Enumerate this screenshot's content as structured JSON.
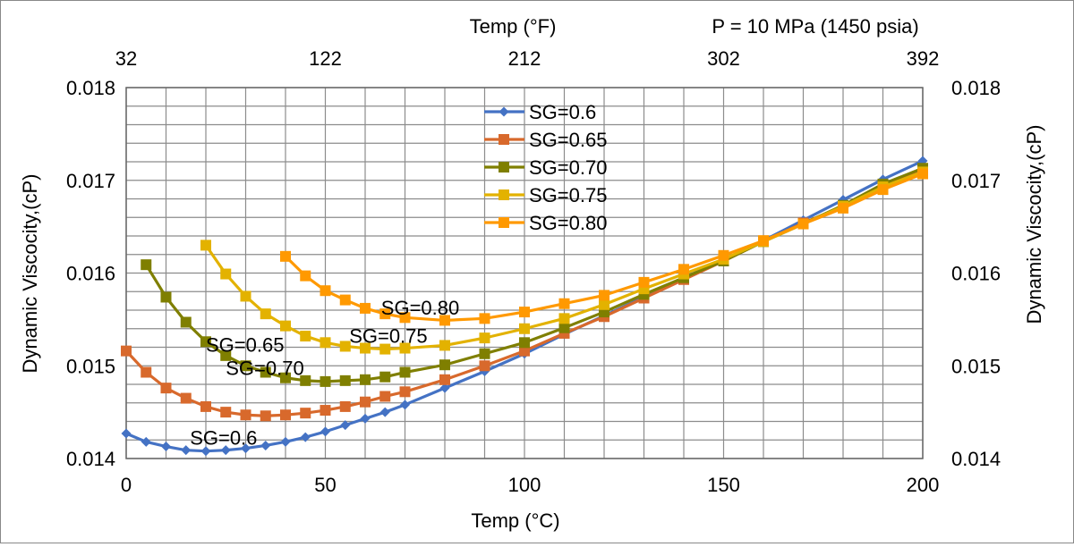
{
  "chart_data": {
    "type": "line",
    "top_title": "Temp (°F)",
    "condition_label": "P = 10 MPa (1450 psia)",
    "xlabel": "Temp (°C)",
    "ylabel": "Dynamic Viscocity,(cP)",
    "ylabel_right": "Dynamic Viscocity,(cP)",
    "xlim": [
      0,
      200
    ],
    "ylim": [
      0.014,
      0.018
    ],
    "x_ticks": [
      "0",
      "50",
      "100",
      "150",
      "200"
    ],
    "x_tick_values": [
      0,
      50,
      100,
      150,
      200
    ],
    "top_x_ticks": [
      "32",
      "122",
      "212",
      "302",
      "392"
    ],
    "y_ticks": [
      "0.014",
      "0.015",
      "0.016",
      "0.017",
      "0.018"
    ],
    "y_tick_values": [
      0.014,
      0.015,
      0.016,
      0.017,
      0.018
    ],
    "grid": true,
    "legend_position": "top-center",
    "series": [
      {
        "name": "SG=0.6",
        "color": "#4472C4",
        "marker": "diamond",
        "x": [
          0,
          5,
          10,
          15,
          20,
          25,
          30,
          35,
          40,
          45,
          50,
          55,
          60,
          65,
          70,
          80,
          90,
          100,
          110,
          120,
          130,
          140,
          150,
          160,
          170,
          180,
          190,
          200
        ],
        "y": [
          0.01427,
          0.01418,
          0.01413,
          0.01409,
          0.01408,
          0.01409,
          0.01411,
          0.01414,
          0.01418,
          0.01423,
          0.01429,
          0.01436,
          0.01443,
          0.0145,
          0.01458,
          0.01476,
          0.01494,
          0.01513,
          0.01534,
          0.01554,
          0.01574,
          0.01595,
          0.01614,
          0.01635,
          0.01657,
          0.01679,
          0.01701,
          0.01721
        ]
      },
      {
        "name": "SG=0.65",
        "color": "#D8692C",
        "marker": "square",
        "x": [
          0,
          5,
          10,
          15,
          20,
          25,
          30,
          35,
          40,
          45,
          50,
          55,
          60,
          65,
          70,
          80,
          90,
          100,
          110,
          120,
          130,
          140,
          150,
          160,
          170,
          180,
          190,
          200
        ],
        "y": [
          0.01516,
          0.01493,
          0.01476,
          0.01465,
          0.01456,
          0.0145,
          0.01447,
          0.01446,
          0.01447,
          0.01449,
          0.01452,
          0.01456,
          0.01461,
          0.01467,
          0.01472,
          0.01485,
          0.015,
          0.01516,
          0.01535,
          0.01553,
          0.01573,
          0.01593,
          0.01613,
          0.01634,
          0.01654,
          0.01672,
          0.01695,
          0.0171
        ]
      },
      {
        "name": "SG=0.70",
        "color": "#7F7F00",
        "marker": "square",
        "x": [
          5,
          10,
          15,
          20,
          25,
          30,
          35,
          40,
          45,
          50,
          55,
          60,
          65,
          70,
          80,
          90,
          100,
          110,
          120,
          130,
          140,
          150,
          160,
          170,
          180,
          190,
          200
        ],
        "y": [
          0.01609,
          0.01574,
          0.01547,
          0.01526,
          0.01511,
          0.015,
          0.01493,
          0.01487,
          0.01484,
          0.01483,
          0.01484,
          0.01485,
          0.01488,
          0.01493,
          0.01501,
          0.01513,
          0.01525,
          0.01541,
          0.01558,
          0.01577,
          0.01595,
          0.01613,
          0.01634,
          0.01653,
          0.01673,
          0.01696,
          0.01713
        ]
      },
      {
        "name": "SG=0.75",
        "color": "#E3B200",
        "marker": "square",
        "x": [
          20,
          25,
          30,
          35,
          40,
          45,
          50,
          55,
          60,
          65,
          70,
          80,
          90,
          100,
          110,
          120,
          130,
          140,
          150,
          160,
          170,
          180,
          190,
          200
        ],
        "y": [
          0.0163,
          0.01599,
          0.01575,
          0.01556,
          0.01543,
          0.01532,
          0.01525,
          0.01521,
          0.01519,
          0.01518,
          0.01519,
          0.01522,
          0.0153,
          0.0154,
          0.01551,
          0.01566,
          0.01583,
          0.01599,
          0.01615,
          0.01634,
          0.01653,
          0.01672,
          0.01693,
          0.01709
        ]
      },
      {
        "name": "SG=0.80",
        "color": "#FF9900",
        "marker": "square",
        "x": [
          40,
          45,
          50,
          55,
          60,
          65,
          70,
          80,
          90,
          100,
          110,
          120,
          130,
          140,
          150,
          160,
          170,
          180,
          190,
          200
        ],
        "y": [
          0.01618,
          0.01597,
          0.01581,
          0.01571,
          0.01562,
          0.01556,
          0.01552,
          0.01549,
          0.01551,
          0.01558,
          0.01567,
          0.01576,
          0.0159,
          0.01604,
          0.01619,
          0.01635,
          0.01653,
          0.0167,
          0.0169,
          0.01707
        ]
      }
    ],
    "annotations": [
      {
        "text": "SG=0.6",
        "x": 16,
        "y": 0.01415
      },
      {
        "text": "SG=0.65",
        "x": 20,
        "y": 0.01515
      },
      {
        "text": "SG=0.70",
        "x": 25,
        "y": 0.0149
      },
      {
        "text": "SG=0.75",
        "x": 56,
        "y": 0.01525
      },
      {
        "text": "SG=0.80",
        "x": 64,
        "y": 0.01555
      }
    ]
  }
}
